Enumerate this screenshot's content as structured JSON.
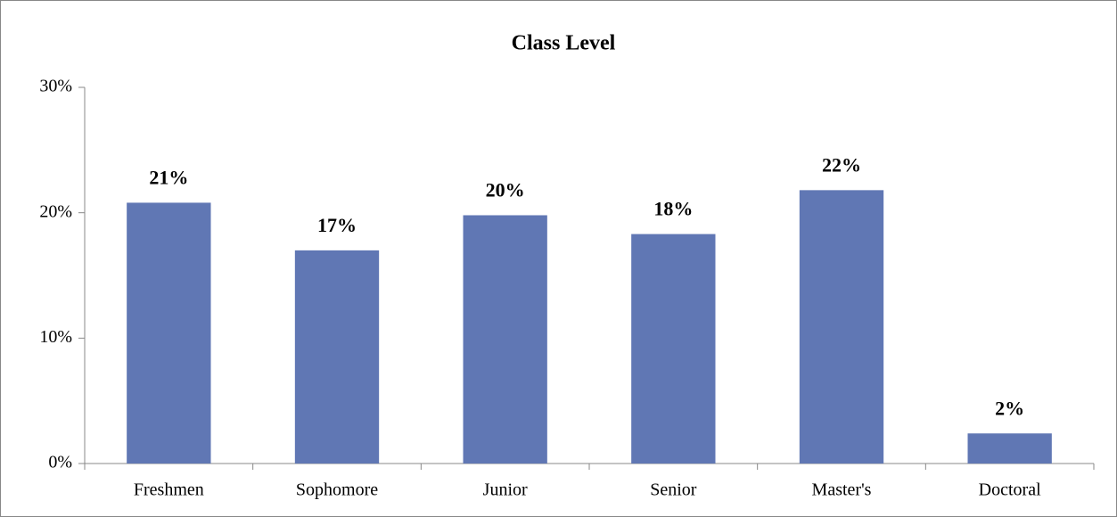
{
  "chart_data": {
    "type": "bar",
    "title": "Class Level",
    "categories": [
      "Freshmen",
      "Sophomore",
      "Junior",
      "Senior",
      "Master's",
      "Doctoral"
    ],
    "values": [
      20.8,
      17.0,
      19.8,
      18.3,
      21.8,
      2.4
    ],
    "value_labels": [
      "21%",
      "17%",
      "20%",
      "18%",
      "22%",
      "2%"
    ],
    "color": "#6077b4",
    "ylim": [
      0,
      30
    ],
    "yticks": [
      {
        "value": 0,
        "label": "0%"
      },
      {
        "value": 10,
        "label": "10%"
      },
      {
        "value": 20,
        "label": "20%"
      },
      {
        "value": 30,
        "label": "30%"
      }
    ],
    "grid": false
  }
}
